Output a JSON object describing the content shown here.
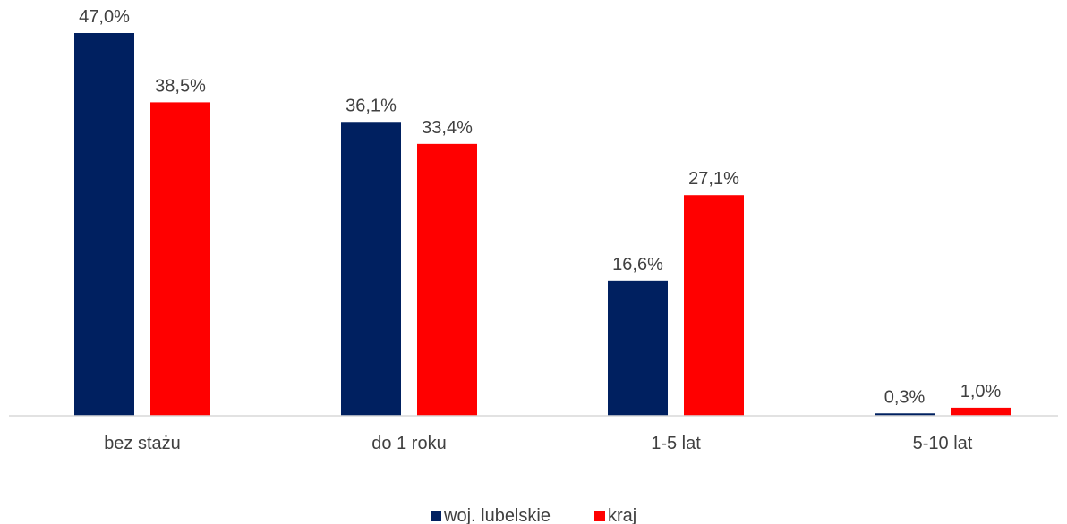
{
  "chart_data": {
    "type": "bar",
    "categories": [
      "bez stażu",
      "do 1 roku",
      "1-5 lat",
      "5-10 lat"
    ],
    "series": [
      {
        "name": "woj. lubelskie",
        "color": "#002060",
        "values": [
          47.0,
          36.1,
          16.6,
          0.3
        ],
        "labels": [
          "47,0%",
          "36,1%",
          "16,6%",
          "0,3%"
        ]
      },
      {
        "name": "kraj",
        "color": "#FF0000",
        "values": [
          38.5,
          33.4,
          27.1,
          1.0
        ],
        "labels": [
          "38,5%",
          "33,4%",
          "27,1%",
          "1,0%"
        ]
      }
    ],
    "ylim": [
      0,
      47
    ],
    "grid": false,
    "legend": "bottom-center",
    "axis_color": "#D9D9D9",
    "text_color": "#404040"
  }
}
